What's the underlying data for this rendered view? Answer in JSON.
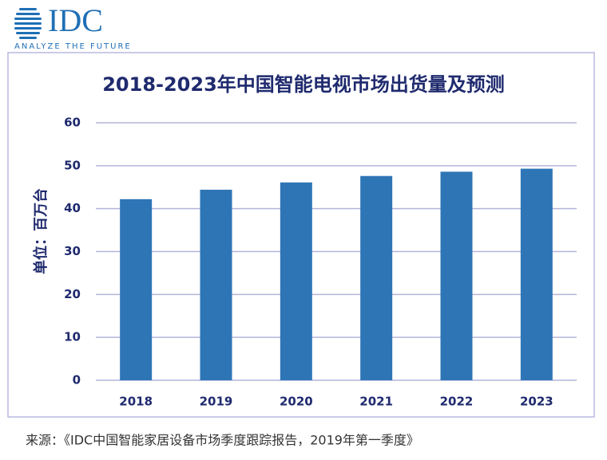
{
  "logo": {
    "name": "IDC",
    "tagline": "ANALYZE THE FUTURE"
  },
  "chart_data": {
    "type": "bar",
    "title": "2018-2023年中国智能电视市场出货量及预测",
    "y_label": "单位：百万台",
    "categories": [
      "2018",
      "2019",
      "2020",
      "2021",
      "2022",
      "2023"
    ],
    "values": [
      42.2,
      44.4,
      46.1,
      47.6,
      48.6,
      49.3
    ],
    "color": "#2e75b6",
    "ylim": [
      0,
      60
    ],
    "yticks": [
      0,
      10,
      20,
      30,
      40,
      50,
      60
    ],
    "grid": true,
    "source": "来源：《IDC中国智能家居设备市场季度跟踪报告，2019年第一季度》"
  }
}
